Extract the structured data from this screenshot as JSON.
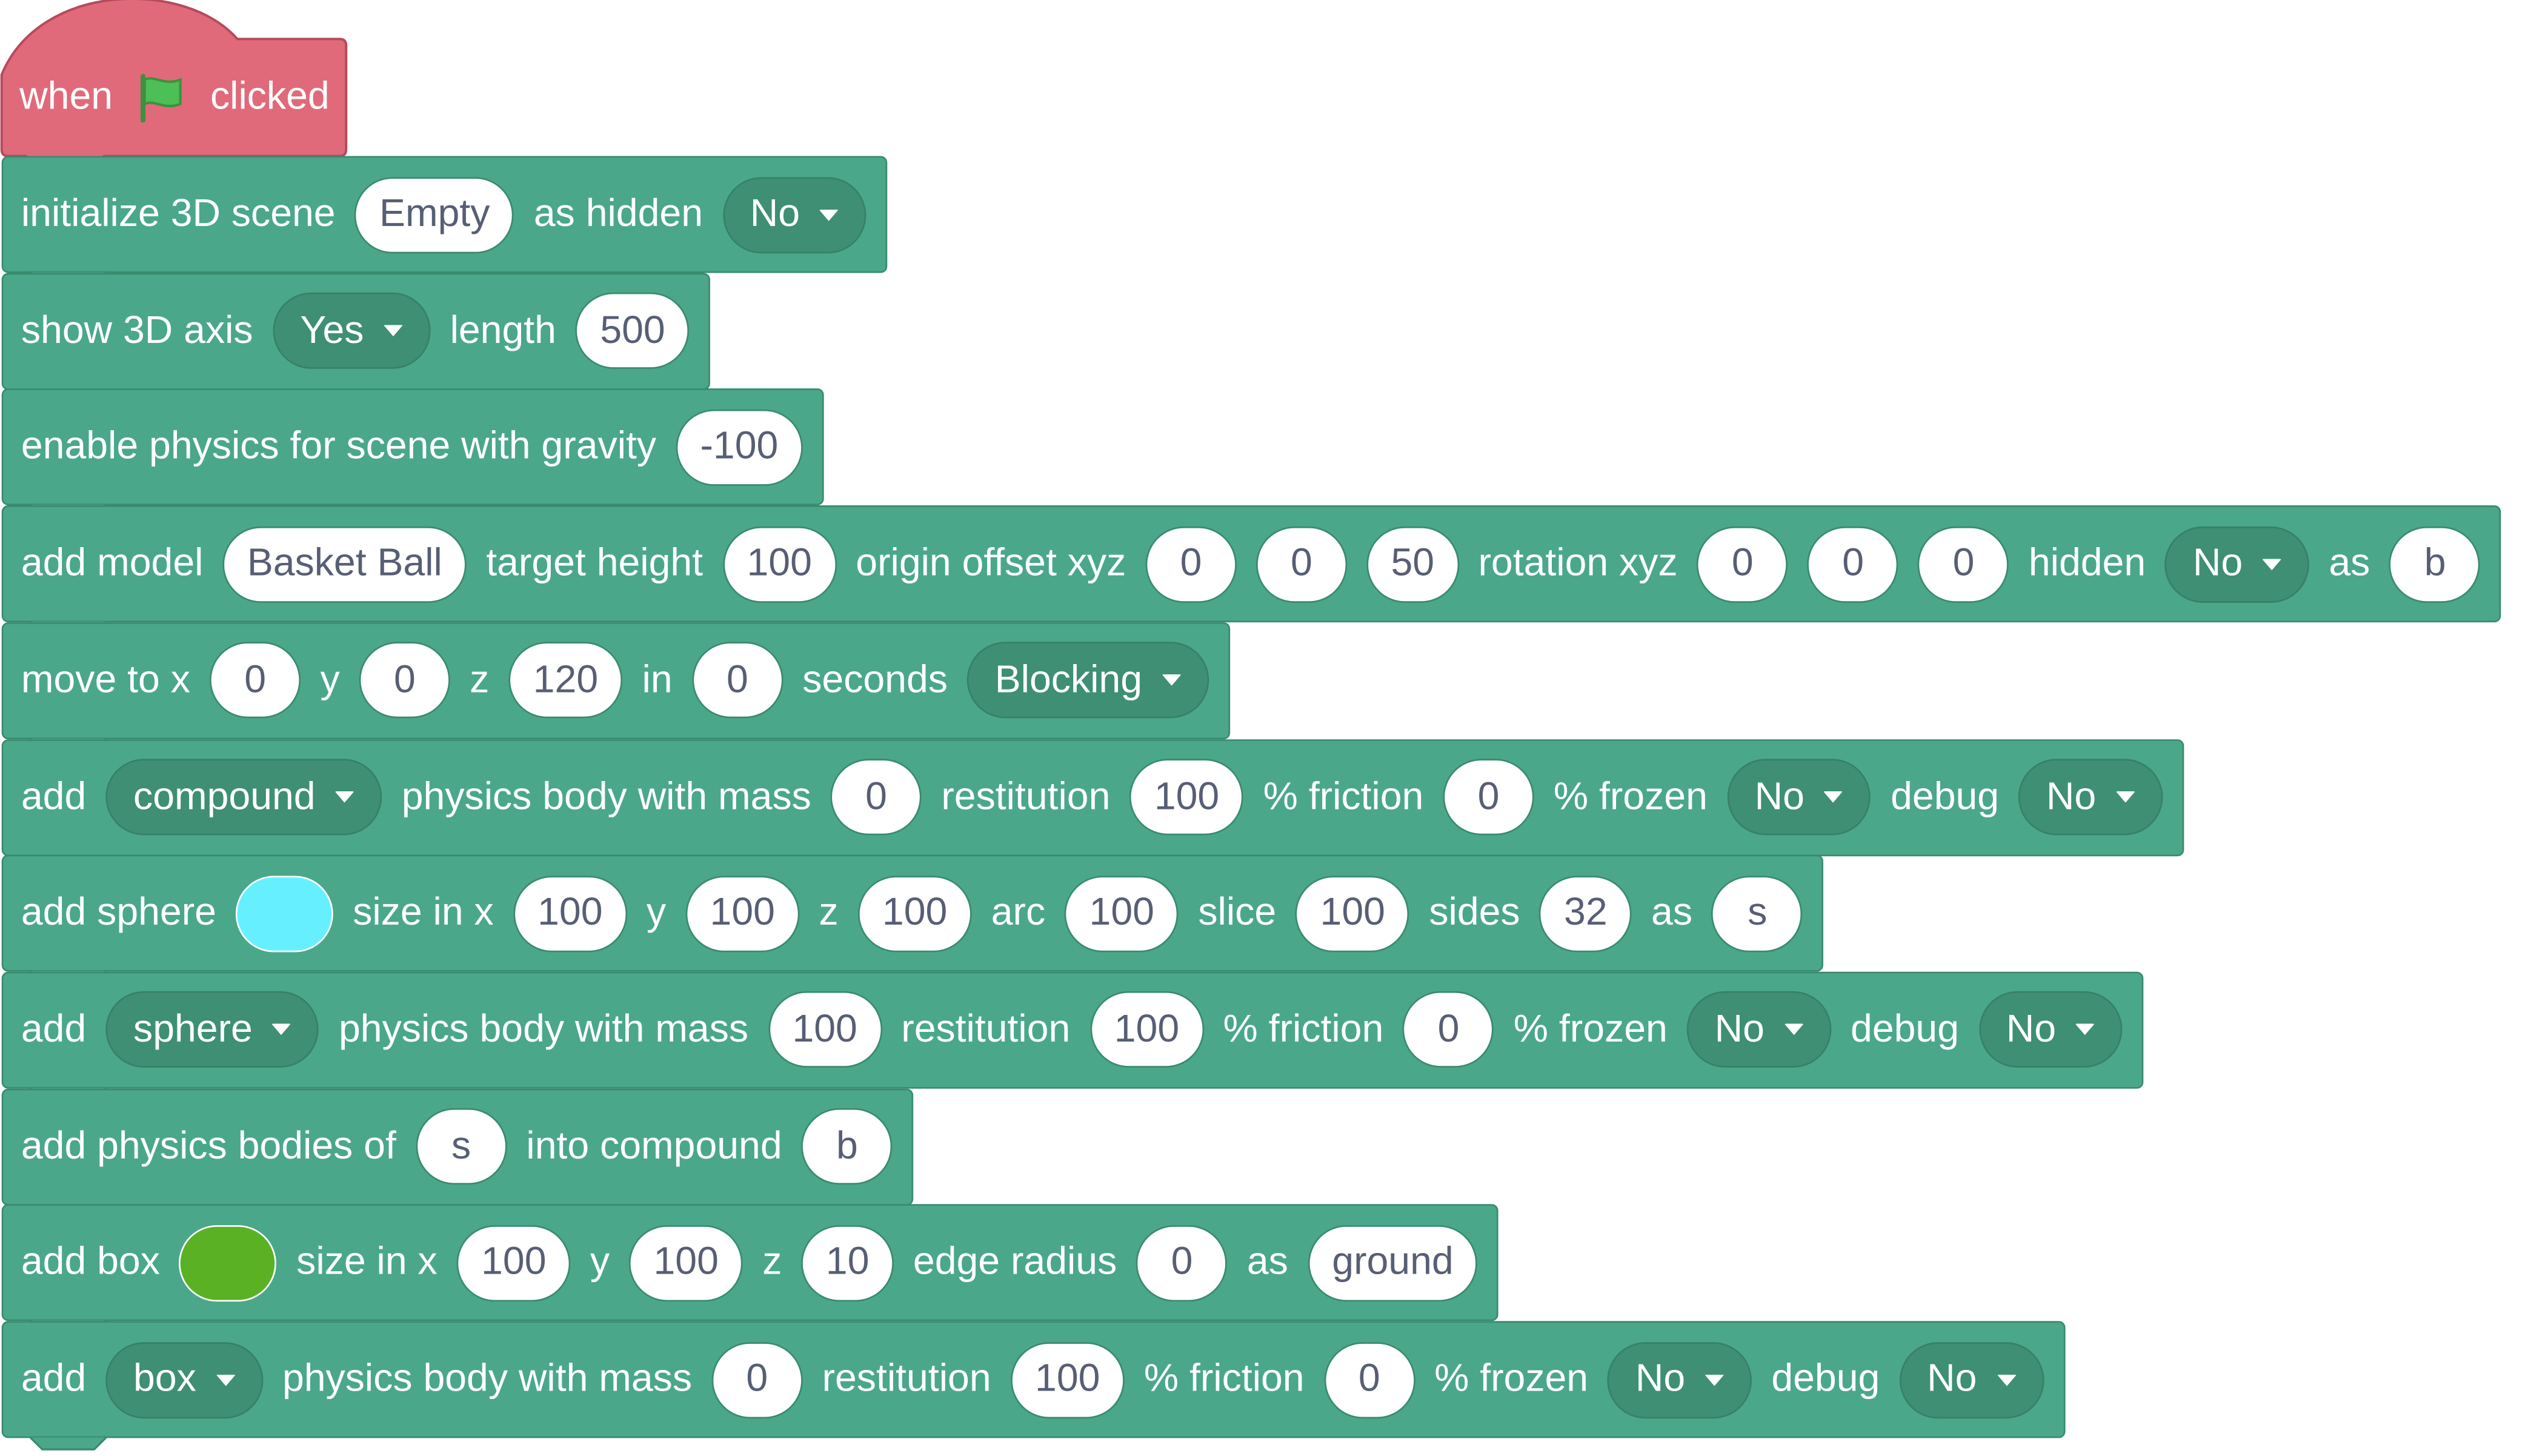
{
  "colors": {
    "hat_fill": "#e06a7a",
    "hat_border": "#b54b5d",
    "block_fill": "#4aa78a",
    "block_border": "#3a8a6e",
    "dropdown_fill": "#3e8f74",
    "input_text": "#575e75",
    "flag_green": "#4cbf56",
    "sphere_color": "#66f0ff",
    "box_color": "#5ab124"
  },
  "hat": {
    "when": "when",
    "clicked": "clicked",
    "flag_icon": "green-flag-icon"
  },
  "blocks": [
    {
      "parts": [
        {
          "t": "label",
          "v": "initialize 3D scene"
        },
        {
          "t": "input",
          "v": "Empty"
        },
        {
          "t": "label",
          "v": "as hidden"
        },
        {
          "t": "dropdown",
          "v": "No"
        }
      ]
    },
    {
      "parts": [
        {
          "t": "label",
          "v": "show 3D axis"
        },
        {
          "t": "dropdown",
          "v": "Yes"
        },
        {
          "t": "label",
          "v": "length"
        },
        {
          "t": "input",
          "v": "500"
        }
      ]
    },
    {
      "parts": [
        {
          "t": "label",
          "v": "enable physics for scene with gravity"
        },
        {
          "t": "input",
          "v": "-100"
        }
      ]
    },
    {
      "parts": [
        {
          "t": "label",
          "v": "add model"
        },
        {
          "t": "input",
          "v": "Basket Ball"
        },
        {
          "t": "label",
          "v": "target height"
        },
        {
          "t": "input",
          "v": "100"
        },
        {
          "t": "label",
          "v": "origin offset xyz"
        },
        {
          "t": "input",
          "v": "0"
        },
        {
          "t": "input",
          "v": "0"
        },
        {
          "t": "input",
          "v": "50"
        },
        {
          "t": "label",
          "v": "rotation xyz"
        },
        {
          "t": "input",
          "v": "0"
        },
        {
          "t": "input",
          "v": "0"
        },
        {
          "t": "input",
          "v": "0"
        },
        {
          "t": "label",
          "v": "hidden"
        },
        {
          "t": "dropdown",
          "v": "No"
        },
        {
          "t": "label",
          "v": "as"
        },
        {
          "t": "input",
          "v": "b"
        }
      ]
    },
    {
      "parts": [
        {
          "t": "label",
          "v": "move to x"
        },
        {
          "t": "input",
          "v": "0"
        },
        {
          "t": "label",
          "v": "y"
        },
        {
          "t": "input",
          "v": "0"
        },
        {
          "t": "label",
          "v": "z"
        },
        {
          "t": "input",
          "v": "120"
        },
        {
          "t": "label",
          "v": "in"
        },
        {
          "t": "input",
          "v": "0"
        },
        {
          "t": "label",
          "v": "seconds"
        },
        {
          "t": "dropdown",
          "v": "Blocking"
        }
      ]
    },
    {
      "parts": [
        {
          "t": "label",
          "v": "add"
        },
        {
          "t": "dropdown",
          "v": "compound"
        },
        {
          "t": "label",
          "v": "physics body with mass"
        },
        {
          "t": "input",
          "v": "0"
        },
        {
          "t": "label",
          "v": "restitution"
        },
        {
          "t": "input",
          "v": "100"
        },
        {
          "t": "label",
          "v": "% friction"
        },
        {
          "t": "input",
          "v": "0"
        },
        {
          "t": "label",
          "v": "% frozen"
        },
        {
          "t": "dropdown",
          "v": "No"
        },
        {
          "t": "label",
          "v": "debug"
        },
        {
          "t": "dropdown",
          "v": "No"
        }
      ]
    },
    {
      "parts": [
        {
          "t": "label",
          "v": "add sphere"
        },
        {
          "t": "color",
          "v": "#66f0ff"
        },
        {
          "t": "label",
          "v": "size in x"
        },
        {
          "t": "input",
          "v": "100"
        },
        {
          "t": "label",
          "v": "y"
        },
        {
          "t": "input",
          "v": "100"
        },
        {
          "t": "label",
          "v": "z"
        },
        {
          "t": "input",
          "v": "100"
        },
        {
          "t": "label",
          "v": "arc"
        },
        {
          "t": "input",
          "v": "100"
        },
        {
          "t": "label",
          "v": "slice"
        },
        {
          "t": "input",
          "v": "100"
        },
        {
          "t": "label",
          "v": "sides"
        },
        {
          "t": "input",
          "v": "32"
        },
        {
          "t": "label",
          "v": "as"
        },
        {
          "t": "input",
          "v": "s"
        }
      ]
    },
    {
      "parts": [
        {
          "t": "label",
          "v": "add"
        },
        {
          "t": "dropdown",
          "v": "sphere"
        },
        {
          "t": "label",
          "v": "physics body with mass"
        },
        {
          "t": "input",
          "v": "100"
        },
        {
          "t": "label",
          "v": "restitution"
        },
        {
          "t": "input",
          "v": "100"
        },
        {
          "t": "label",
          "v": "% friction"
        },
        {
          "t": "input",
          "v": "0"
        },
        {
          "t": "label",
          "v": "% frozen"
        },
        {
          "t": "dropdown",
          "v": "No"
        },
        {
          "t": "label",
          "v": "debug"
        },
        {
          "t": "dropdown",
          "v": "No"
        }
      ]
    },
    {
      "parts": [
        {
          "t": "label",
          "v": "add physics bodies of"
        },
        {
          "t": "input",
          "v": "s"
        },
        {
          "t": "label",
          "v": "into compound"
        },
        {
          "t": "input",
          "v": "b"
        }
      ]
    },
    {
      "parts": [
        {
          "t": "label",
          "v": "add box"
        },
        {
          "t": "color",
          "v": "#5ab124"
        },
        {
          "t": "label",
          "v": "size in x"
        },
        {
          "t": "input",
          "v": "100"
        },
        {
          "t": "label",
          "v": "y"
        },
        {
          "t": "input",
          "v": "100"
        },
        {
          "t": "label",
          "v": "z"
        },
        {
          "t": "input",
          "v": "10"
        },
        {
          "t": "label",
          "v": "edge radius"
        },
        {
          "t": "input",
          "v": "0"
        },
        {
          "t": "label",
          "v": "as"
        },
        {
          "t": "input",
          "v": "ground"
        }
      ]
    },
    {
      "parts": [
        {
          "t": "label",
          "v": "add"
        },
        {
          "t": "dropdown",
          "v": "box"
        },
        {
          "t": "label",
          "v": "physics body with mass"
        },
        {
          "t": "input",
          "v": "0"
        },
        {
          "t": "label",
          "v": "restitution"
        },
        {
          "t": "input",
          "v": "100"
        },
        {
          "t": "label",
          "v": "% friction"
        },
        {
          "t": "input",
          "v": "0"
        },
        {
          "t": "label",
          "v": "% frozen"
        },
        {
          "t": "dropdown",
          "v": "No"
        },
        {
          "t": "label",
          "v": "debug"
        },
        {
          "t": "dropdown",
          "v": "No"
        }
      ]
    }
  ]
}
